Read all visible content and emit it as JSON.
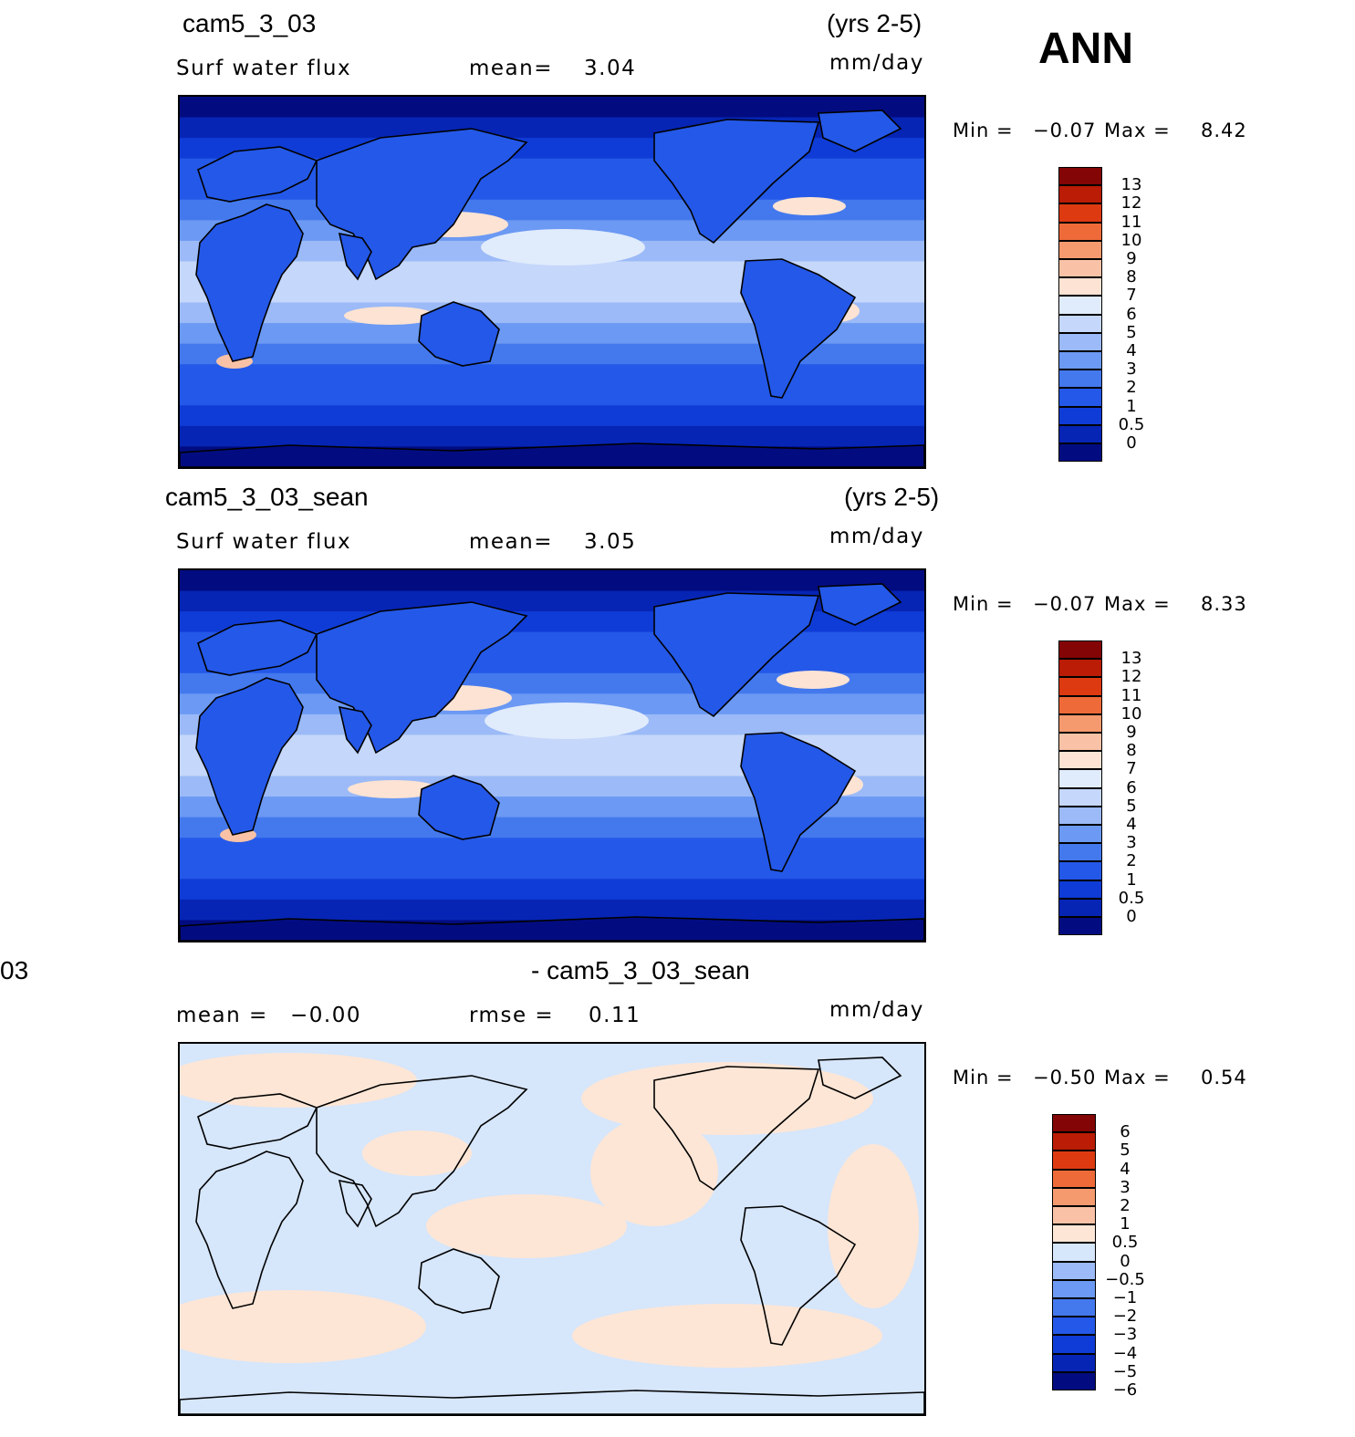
{
  "season": "ANN",
  "panels": [
    {
      "case": "cam5_3_03",
      "years": "(yrs 2-5)",
      "left_label": "Surf water flux",
      "center_label": "mean=",
      "center_value": "3.04",
      "units": "mm/day",
      "min_label": "Min =",
      "min_value": "−0.07",
      "max_label": "Max =",
      "max_value": "8.42",
      "levels": [
        "13",
        "12",
        "11",
        "10",
        "9",
        "8",
        "7",
        "6",
        "5",
        "4",
        "3",
        "2",
        "1",
        "0.5",
        "0"
      ]
    },
    {
      "case": "cam5_3_03_sean",
      "years": "(yrs 2-5)",
      "left_label": "Surf water flux",
      "center_label": "mean=",
      "center_value": "3.05",
      "units": "mm/day",
      "min_label": "Min =",
      "min_value": "−0.07",
      "max_label": "Max =",
      "max_value": "8.33",
      "levels": [
        "13",
        "12",
        "11",
        "10",
        "9",
        "8",
        "7",
        "6",
        "5",
        "4",
        "3",
        "2",
        "1",
        "0.5",
        "0"
      ]
    },
    {
      "case_left": "03",
      "case": "- cam5_3_03_sean",
      "left_label": "mean =",
      "left_value": "−0.00",
      "center_label": "rmse =",
      "center_value": "0.11",
      "units": "mm/day",
      "min_label": "Min =",
      "min_value": "−0.50",
      "max_label": "Max =",
      "max_value": "0.54",
      "levels": [
        "6",
        "5",
        "4",
        "3",
        "2",
        "1",
        "0.5",
        "0",
        "−0.5",
        "−1",
        "−2",
        "−3",
        "−4",
        "−5",
        "−6"
      ]
    }
  ],
  "chart_data": [
    {
      "type": "heatmap",
      "title": "cam5_3_03",
      "subtitle": "Surf water flux",
      "units": "mm/day",
      "mean": 3.04,
      "min": -0.07,
      "max": 8.42,
      "contour_levels": [
        0,
        0.5,
        1,
        2,
        3,
        4,
        5,
        6,
        7,
        8,
        9,
        10,
        11,
        12,
        13
      ],
      "colors": [
        "#020c80",
        "#0625b5",
        "#0f3cd6",
        "#2458e8",
        "#4479ee",
        "#6b99f3",
        "#9bbaf7",
        "#c5d7fa",
        "#e0ebfc",
        "#fce3d3",
        "#f9c2a6",
        "#f59a6e",
        "#ef6a39",
        "#dd3a12",
        "#ba1c05",
        "#830505"
      ]
    },
    {
      "type": "heatmap",
      "title": "cam5_3_03_sean",
      "subtitle": "Surf water flux",
      "units": "mm/day",
      "mean": 3.05,
      "min": -0.07,
      "max": 8.33,
      "contour_levels": [
        0,
        0.5,
        1,
        2,
        3,
        4,
        5,
        6,
        7,
        8,
        9,
        10,
        11,
        12,
        13
      ],
      "colors": [
        "#020c80",
        "#0625b5",
        "#0f3cd6",
        "#2458e8",
        "#4479ee",
        "#6b99f3",
        "#9bbaf7",
        "#c5d7fa",
        "#e0ebfc",
        "#fce3d3",
        "#f9c2a6",
        "#f59a6e",
        "#ef6a39",
        "#dd3a12",
        "#ba1c05",
        "#830505"
      ]
    },
    {
      "type": "heatmap",
      "title": "- cam5_3_03_sean",
      "units": "mm/day",
      "mean": -0.0,
      "rmse": 0.11,
      "min": -0.5,
      "max": 0.54,
      "contour_levels": [
        -6,
        -5,
        -4,
        -3,
        -2,
        -1,
        -0.5,
        0,
        0.5,
        1,
        2,
        3,
        4,
        5,
        6
      ],
      "colors": [
        "#020c80",
        "#0625b5",
        "#0f3cd6",
        "#2458e8",
        "#4479ee",
        "#6b99f3",
        "#9bbaf7",
        "#d6e6fb",
        "#fde6d6",
        "#f9c2a6",
        "#f59a6e",
        "#ef6a39",
        "#dd3a12",
        "#ba1c05",
        "#830505"
      ]
    }
  ]
}
